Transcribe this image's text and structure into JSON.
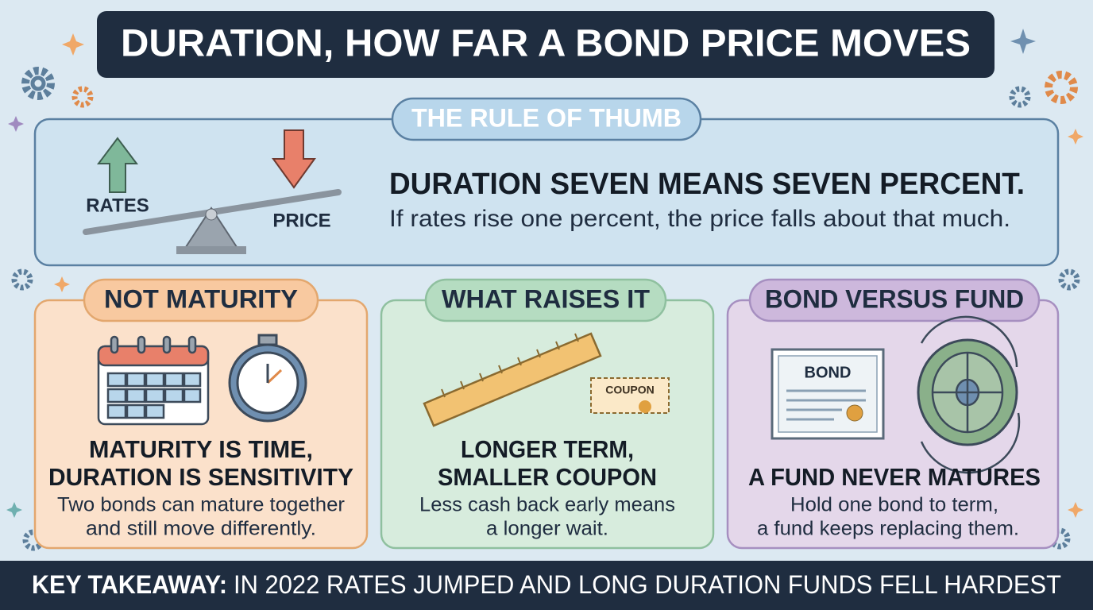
{
  "title": "DURATION, HOW FAR A BOND PRICE MOVES",
  "rule": {
    "label": "THE RULE OF THUMB",
    "icon_labels": [
      "RATES",
      "PRICE"
    ],
    "heading": "DURATION SEVEN MEANS SEVEN PERCENT.",
    "text": "If rates rise one percent, the price falls about that much."
  },
  "panels": [
    {
      "label": "NOT MATURITY",
      "heading": [
        "MATURITY IS TIME,",
        "DURATION IS SENSITIVITY"
      ],
      "text": [
        "Two bonds can mature together",
        "and still move differently."
      ]
    },
    {
      "label": "WHAT RAISES IT",
      "icon_label": "COUPON",
      "heading": [
        "LONGER TERM,",
        "SMALLER COUPON"
      ],
      "text": [
        "Less cash back early means",
        "a longer wait."
      ]
    },
    {
      "label": "BOND VERSUS FUND",
      "icon_label": "BOND",
      "heading": [
        "A FUND NEVER MATURES"
      ],
      "text": [
        "Hold one bond to term,",
        "a fund keeps replacing them."
      ]
    }
  ],
  "footer": {
    "lead": "KEY TAKEAWAY:",
    "text": "IN 2022 RATES JUMPED AND LONG DURATION FUNDS FELL HARDEST"
  }
}
